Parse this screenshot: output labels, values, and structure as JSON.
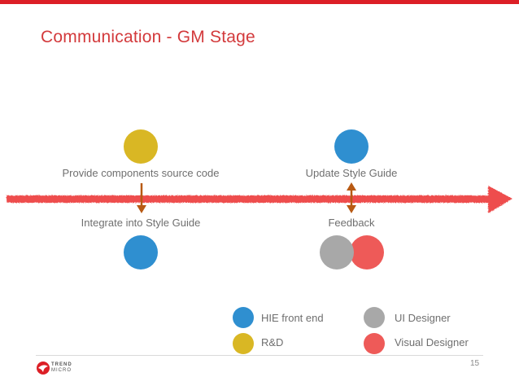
{
  "slide": {
    "title": "Communication - GM Stage",
    "page_number": "15"
  },
  "events": {
    "left": {
      "top_label": "Provide components source code",
      "bottom_label": "Integrate into Style Guide"
    },
    "right": {
      "top_label": "Update Style Guide",
      "bottom_label": "Feedback"
    }
  },
  "legend": {
    "items": [
      {
        "label": "HIE front end",
        "color": "#2f8fd0"
      },
      {
        "label": "R&D",
        "color": "#d9b724"
      },
      {
        "label": "UI Designer",
        "color": "#a8a8a8"
      },
      {
        "label": "Visual Designer",
        "color": "#ee5a58"
      }
    ]
  },
  "colors": {
    "accent": "#dc1f26",
    "title": "#d33a3c",
    "timeline": "#ee4d4d",
    "arrow": "#b85a14",
    "hie": "#2f8fd0",
    "rd": "#d9b724",
    "ui": "#a8a8a8",
    "visual": "#ee5a58"
  },
  "logo": {
    "text_line1": "TREND",
    "text_line2": "MICRO",
    "icon": "trend-micro-logo-icon"
  }
}
